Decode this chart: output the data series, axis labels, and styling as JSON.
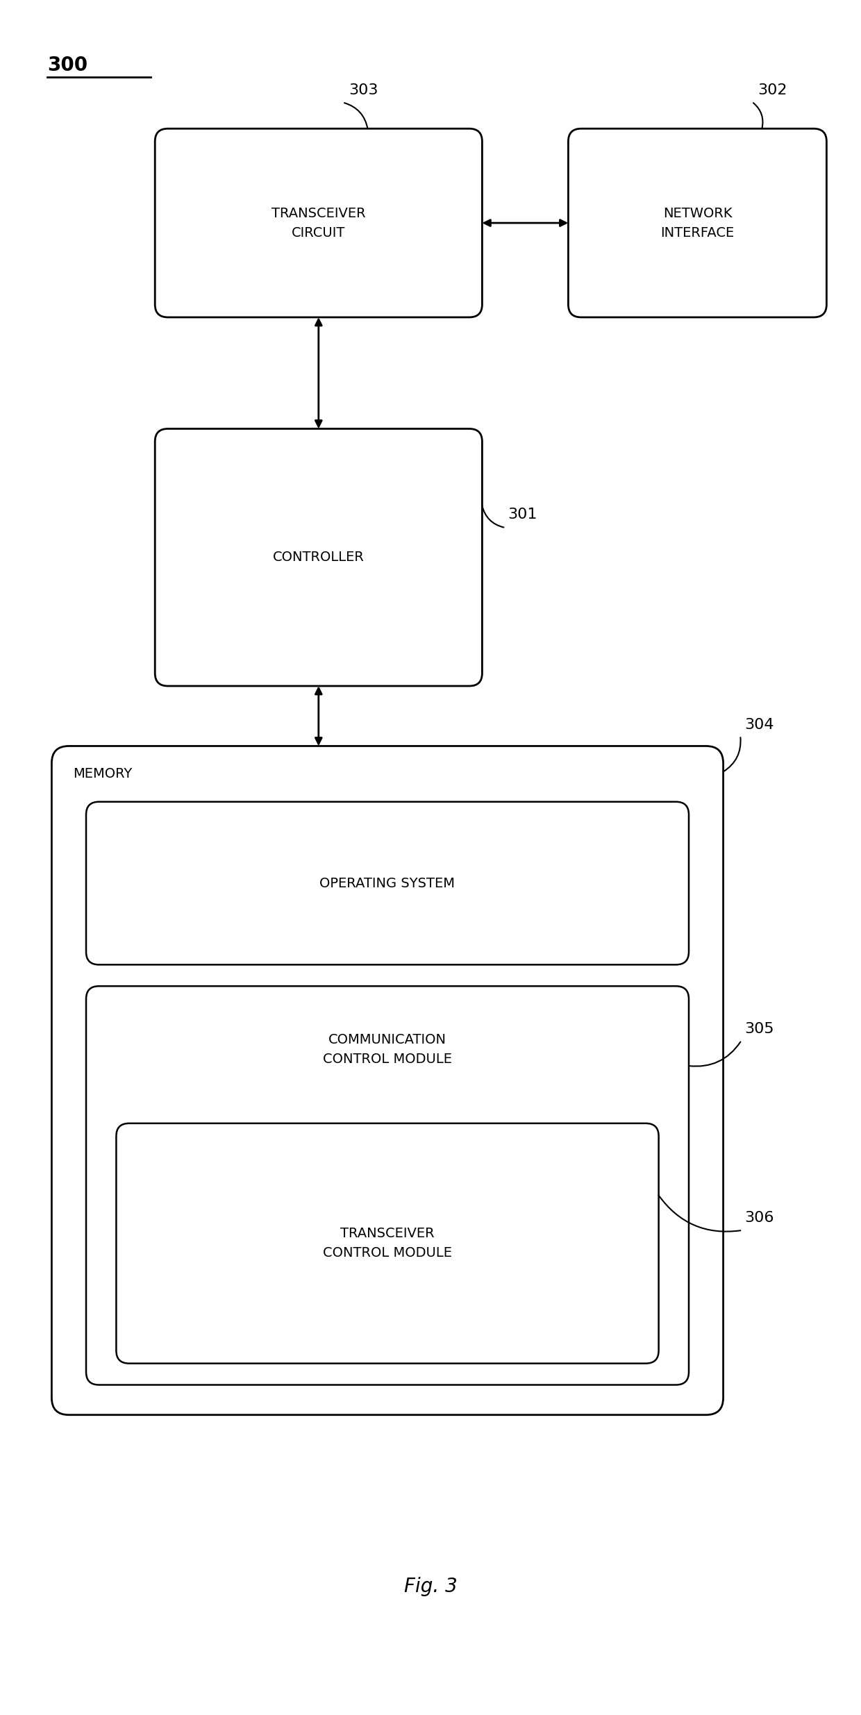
{
  "title": "Fig. 3",
  "label_300": "300",
  "label_301": "301",
  "label_302": "302",
  "label_303": "303",
  "label_304": "304",
  "label_305": "305",
  "label_306": "306",
  "transceiver_circuit_text": "TRANSCEIVER\nCIRCUIT",
  "network_interface_text": "NETWORK\nINTERFACE",
  "controller_text": "CONTROLLER",
  "memory_text": "MEMORY",
  "operating_system_text": "OPERATING SYSTEM",
  "comm_control_text": "COMMUNICATION\nCONTROL MODULE",
  "transceiver_control_text": "TRANSCEIVER\nCONTROL MODULE",
  "bg_color": "#ffffff",
  "text_color": "#000000",
  "font_size_label": 16,
  "font_size_box": 14,
  "font_size_title": 20,
  "font_size_300": 20
}
